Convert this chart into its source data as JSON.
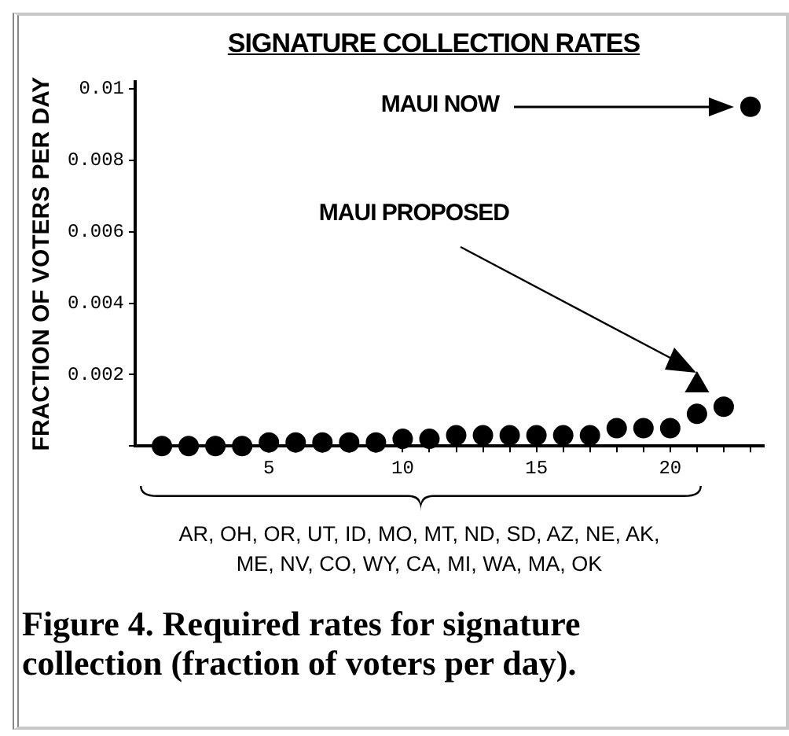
{
  "chart_data": {
    "type": "scatter",
    "title": "SIGNATURE COLLECTION RATES",
    "ylabel": "FRACTION OF VOTERS PER DAY",
    "series": [
      {
        "color": "#000000",
        "marker": "circle",
        "x": [
          1,
          2,
          3,
          4,
          5,
          6,
          7,
          8,
          9,
          10,
          11,
          12,
          13,
          14,
          15,
          16,
          17,
          18,
          19,
          20,
          21,
          22,
          23
        ],
        "values": [
          0,
          0,
          0,
          0,
          0.0001,
          0.0001,
          0.0001,
          0.0001,
          0.0001,
          0.0002,
          0.0002,
          0.0003,
          0.0003,
          0.0003,
          0.0003,
          0.0003,
          0.0003,
          0.0005,
          0.0005,
          0.0005,
          0.0009,
          0.0011,
          0.0095
        ]
      },
      {
        "color": "#000000",
        "marker": "triangle",
        "x": [
          21
        ],
        "values": [
          0.0017
        ]
      }
    ],
    "xlim": [
      0,
      23.5
    ],
    "xticks": [
      {
        "value": 1,
        "label": null
      },
      {
        "value": 2,
        "label": null
      },
      {
        "value": 3,
        "label": null
      },
      {
        "value": 4,
        "label": null
      },
      5,
      {
        "value": 6,
        "label": null
      },
      {
        "value": 7,
        "label": null
      },
      {
        "value": 8,
        "label": null
      },
      {
        "value": 9,
        "label": null
      },
      10,
      {
        "value": 11,
        "label": null
      },
      {
        "value": 12,
        "label": null
      },
      {
        "value": 13,
        "label": null
      },
      {
        "value": 14,
        "label": null
      },
      15,
      {
        "value": 16,
        "label": null
      },
      {
        "value": 17,
        "label": null
      },
      {
        "value": 18,
        "label": null
      },
      {
        "value": 19,
        "label": null
      },
      20,
      {
        "value": 21,
        "label": null
      },
      {
        "value": 22,
        "label": null
      },
      {
        "value": 23,
        "label": null
      }
    ],
    "ylim": [
      0,
      0.0102
    ],
    "yticks": [
      {
        "value": 0,
        "label": null
      },
      0.002,
      0.004,
      0.006,
      0.008,
      0.01
    ],
    "grid": false,
    "annotations": [
      "MAUI NOW",
      "MAUI PROPOSED",
      "AR, OH, OR, UT, ID, MO, MT, ND, SD, AZ, NE, AK, ME, NV, CO, WY, CA, MI, WA, MA, OK",
      "Figure 4. Required rates for signature collection (fraction of voters per day)."
    ]
  }
}
